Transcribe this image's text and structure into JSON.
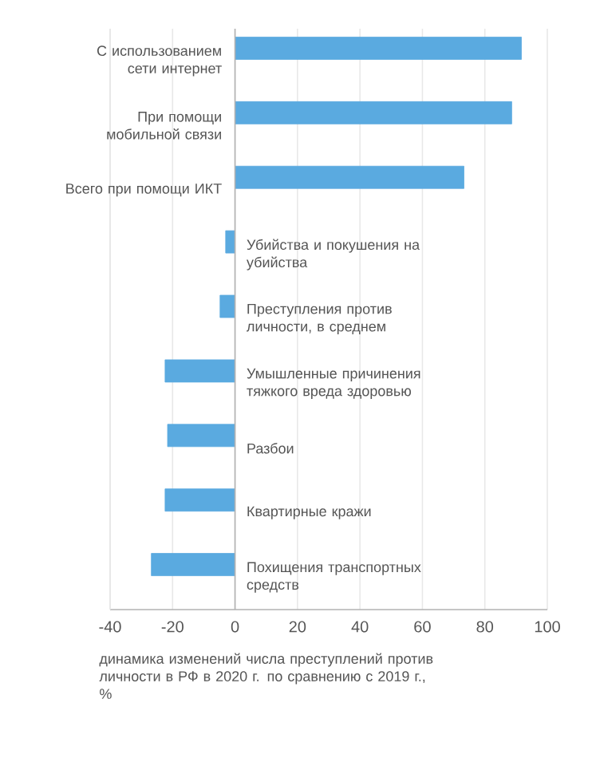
{
  "chart_data": {
    "type": "bar",
    "orientation": "horizontal",
    "xlabel": "динамика изменений числа преступлений против личности в РФ в 2020 г. по сравнению с 2019 г., %",
    "categories": [
      "С использованием сети интернет",
      "При помощи мобильной связи",
      "Всего при помощи ИКТ",
      "Убийства и покушения на убийства",
      "Преступления против личности, в среднем",
      "Умышленные причинения тяжкого вреда здоровью",
      "Разбои",
      "Квартирные кражи",
      "Похищения транспортных средств"
    ],
    "values": [
      91.7,
      88.6,
      73.3,
      -3,
      -4.8,
      -22.4,
      -21.6,
      -22.4,
      -26.8
    ],
    "color": "#5aaae0",
    "xlim": [
      -40,
      100
    ],
    "xticks": [
      -40,
      -20,
      0,
      20,
      40,
      60,
      80,
      100
    ],
    "grid": true
  }
}
